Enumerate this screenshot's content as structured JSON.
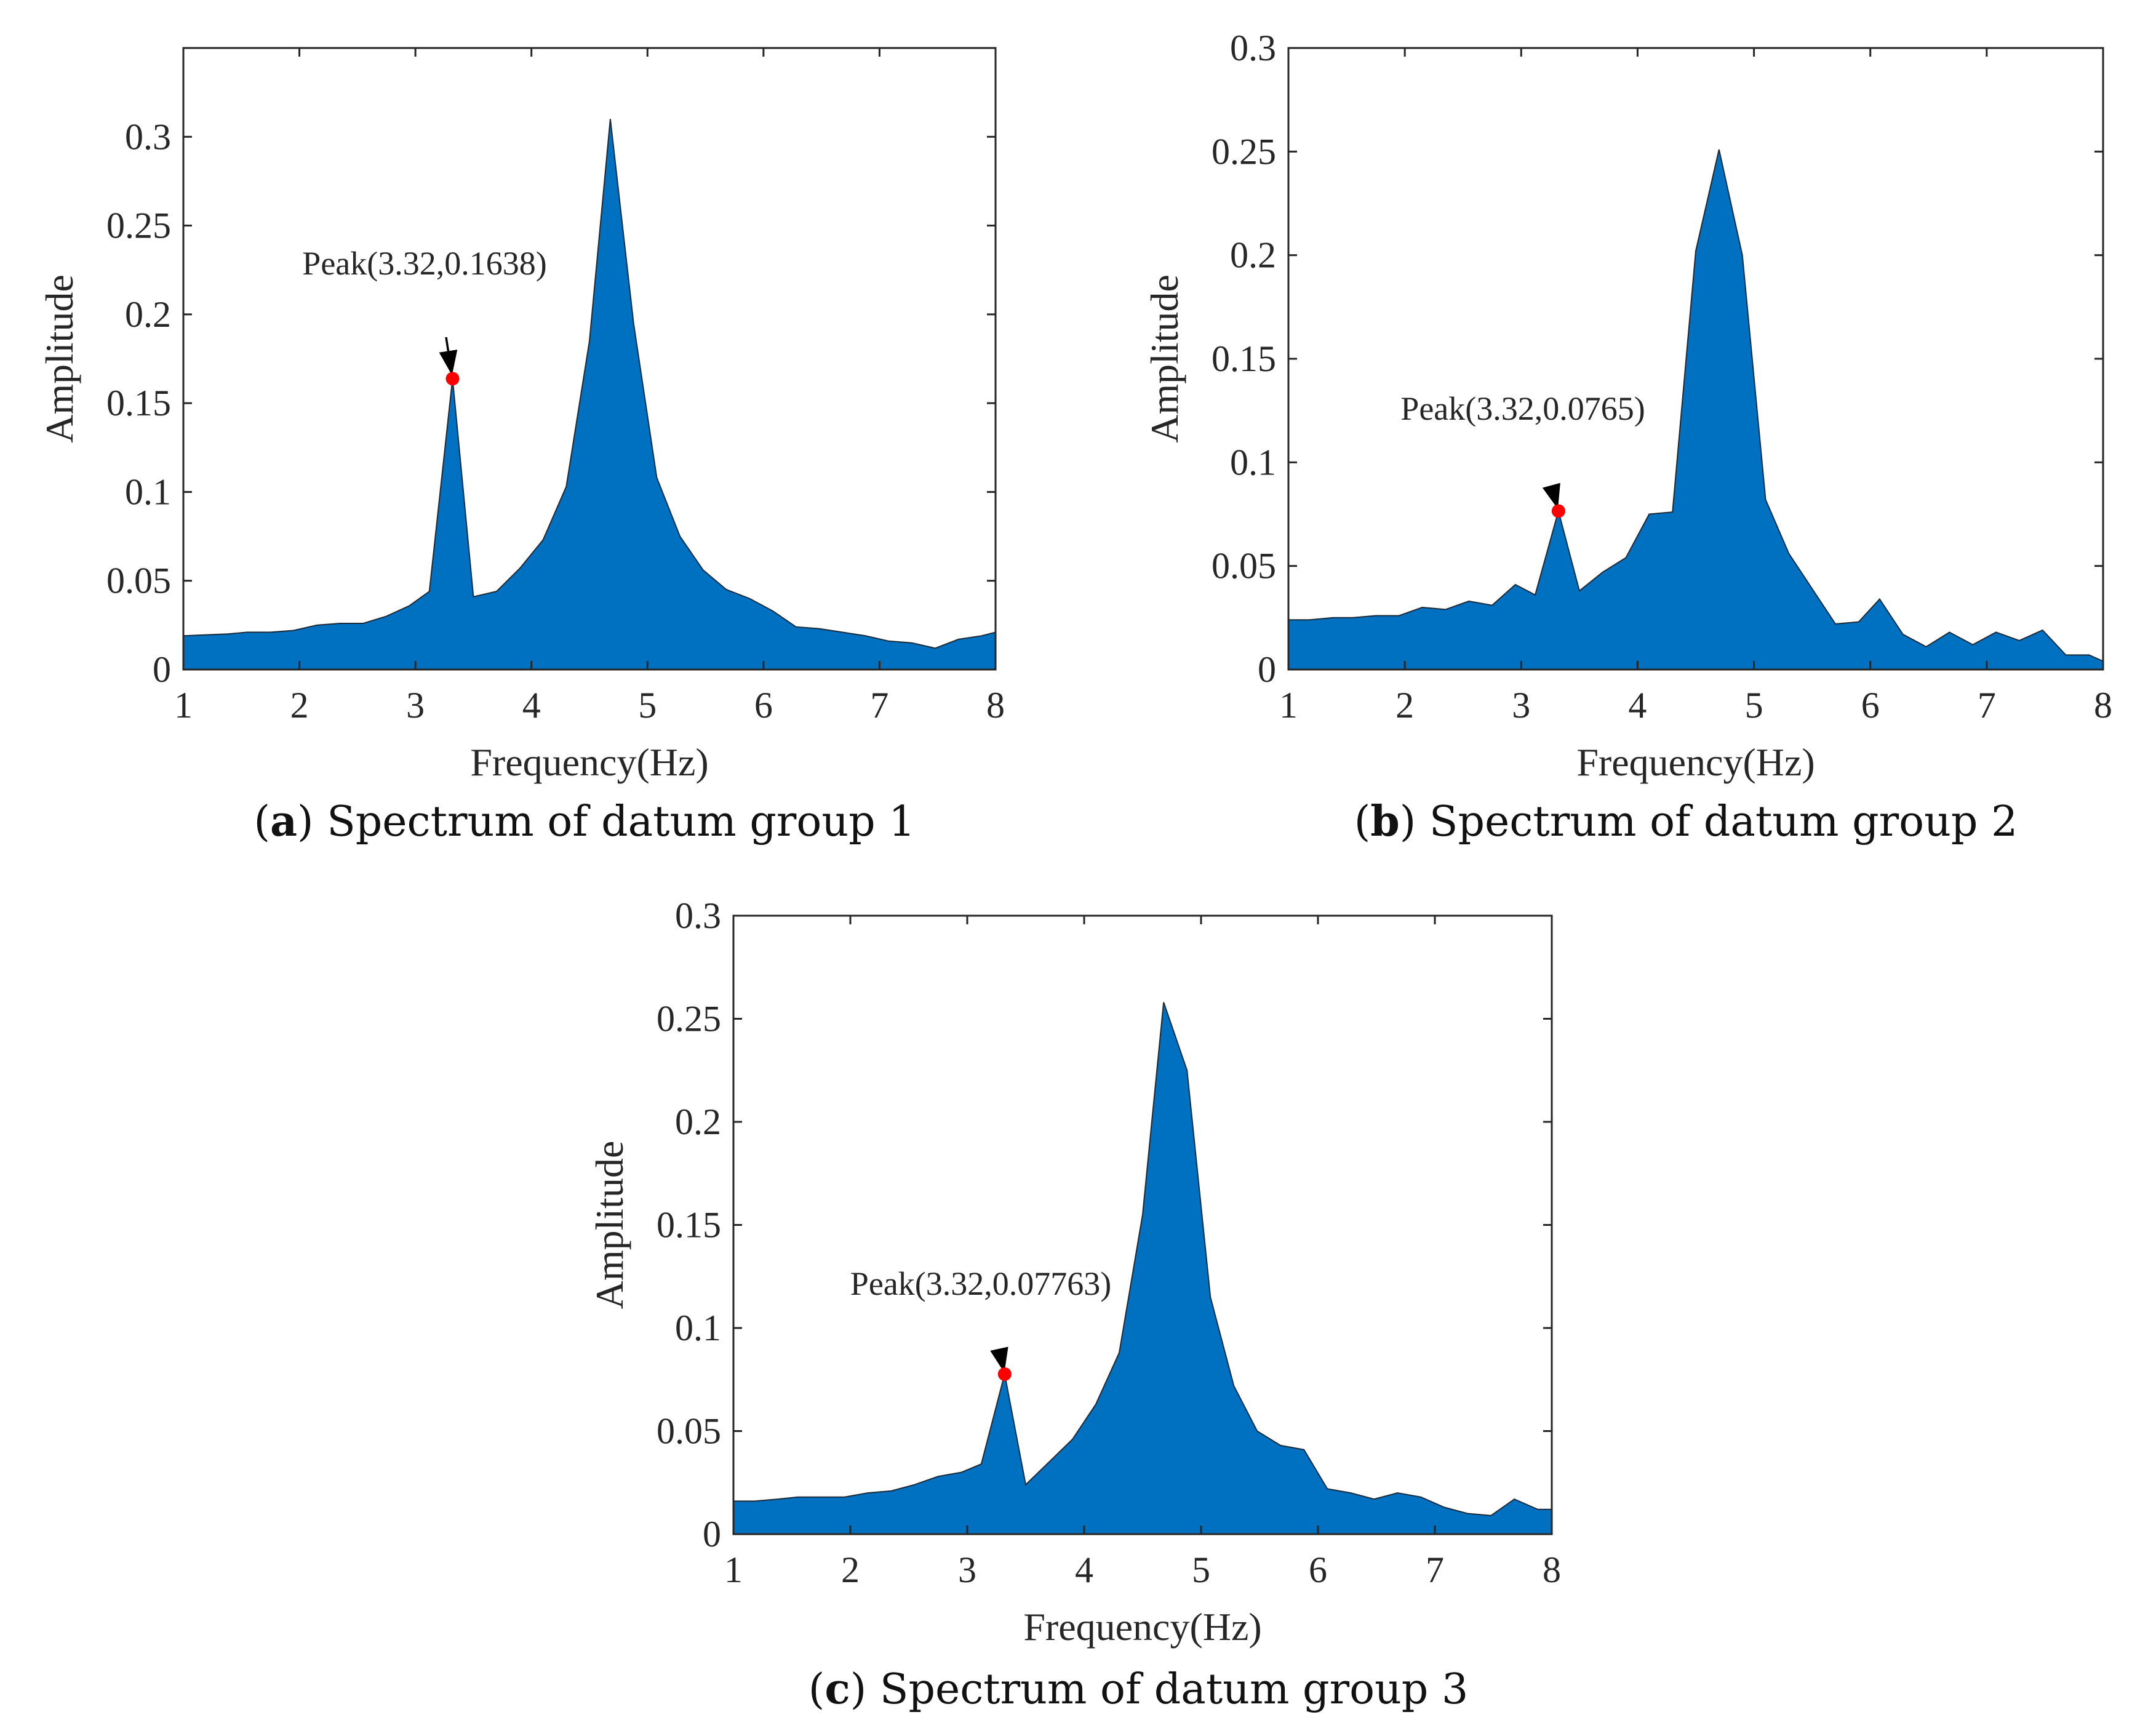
{
  "colors": {
    "fill": "#0070C0",
    "outline": "#1a2a3a",
    "axis": "#262626",
    "marker": "#ff0000",
    "text": "#262626"
  },
  "chart_data": [
    {
      "id": "a",
      "type": "area",
      "caption_letter": "a",
      "caption_text": " Spectrum of datum group 1",
      "xlabel": "Frequency(Hz)",
      "ylabel": "Amplitude",
      "xlim": [
        1,
        8
      ],
      "ylim": [
        0,
        0.35
      ],
      "xticks": [
        1,
        2,
        3,
        4,
        5,
        6,
        7,
        8
      ],
      "yticks": [
        0,
        0.05,
        0.1,
        0.15,
        0.2,
        0.25,
        0.3
      ],
      "ytick_labels": [
        "0",
        "0.05",
        "0.1",
        "0.15",
        "0.2",
        "0.25",
        "0.3"
      ],
      "x": [
        1.0,
        1.18,
        1.38,
        1.55,
        1.75,
        1.95,
        2.15,
        2.35,
        2.55,
        2.75,
        2.95,
        3.12,
        3.32,
        3.5,
        3.7,
        3.9,
        4.1,
        4.3,
        4.5,
        4.68,
        4.88,
        5.08,
        5.28,
        5.48,
        5.68,
        5.88,
        6.08,
        6.28,
        6.48,
        6.68,
        6.88,
        7.08,
        7.28,
        7.48,
        7.68,
        7.88,
        8.0
      ],
      "y": [
        0.019,
        0.0195,
        0.02,
        0.021,
        0.021,
        0.022,
        0.025,
        0.026,
        0.026,
        0.03,
        0.036,
        0.044,
        0.1638,
        0.041,
        0.044,
        0.057,
        0.073,
        0.103,
        0.185,
        0.31,
        0.195,
        0.108,
        0.075,
        0.056,
        0.045,
        0.04,
        0.033,
        0.024,
        0.023,
        0.021,
        0.019,
        0.016,
        0.015,
        0.012,
        0.017,
        0.019,
        0.021
      ],
      "peak": {
        "x": 3.32,
        "y": 0.1638,
        "label": "Peak(3.32,0.1638)"
      }
    },
    {
      "id": "b",
      "type": "area",
      "caption_letter": "b",
      "caption_text": " Spectrum of datum group 2",
      "xlabel": "Frequency(Hz)",
      "ylabel": "Amplitude",
      "xlim": [
        1,
        8
      ],
      "ylim": [
        0,
        0.3
      ],
      "xticks": [
        1,
        2,
        3,
        4,
        5,
        6,
        7,
        8
      ],
      "yticks": [
        0,
        0.05,
        0.1,
        0.15,
        0.2,
        0.25,
        0.3
      ],
      "ytick_labels": [
        "0",
        "0.05",
        "0.1",
        "0.15",
        "0.2",
        "0.25",
        "0.3"
      ],
      "x": [
        1.0,
        1.18,
        1.38,
        1.55,
        1.75,
        1.95,
        2.15,
        2.35,
        2.55,
        2.75,
        2.95,
        3.12,
        3.32,
        3.5,
        3.7,
        3.9,
        4.1,
        4.3,
        4.5,
        4.7,
        4.9,
        5.1,
        5.3,
        5.5,
        5.7,
        5.9,
        6.08,
        6.28,
        6.48,
        6.68,
        6.88,
        7.08,
        7.28,
        7.48,
        7.68,
        7.88,
        8.0
      ],
      "y": [
        0.024,
        0.024,
        0.025,
        0.025,
        0.026,
        0.026,
        0.03,
        0.029,
        0.033,
        0.031,
        0.041,
        0.036,
        0.0765,
        0.038,
        0.047,
        0.054,
        0.075,
        0.076,
        0.202,
        0.251,
        0.2,
        0.082,
        0.056,
        0.039,
        0.022,
        0.023,
        0.034,
        0.017,
        0.011,
        0.018,
        0.012,
        0.018,
        0.014,
        0.019,
        0.007,
        0.007,
        0.004
      ],
      "peak": {
        "x": 3.32,
        "y": 0.0765,
        "label": "Peak(3.32,0.0765)"
      }
    },
    {
      "id": "c",
      "type": "area",
      "caption_letter": "c",
      "caption_text": " Spectrum of datum group 3",
      "xlabel": "Frequency(Hz)",
      "ylabel": "Amplitude",
      "xlim": [
        1,
        8
      ],
      "ylim": [
        0,
        0.3
      ],
      "xticks": [
        1,
        2,
        3,
        4,
        5,
        6,
        7,
        8
      ],
      "yticks": [
        0,
        0.05,
        0.1,
        0.15,
        0.2,
        0.25,
        0.3
      ],
      "ytick_labels": [
        "0",
        "0.05",
        "0.1",
        "0.15",
        "0.2",
        "0.25",
        "0.3"
      ],
      "x": [
        1.0,
        1.18,
        1.38,
        1.55,
        1.75,
        1.95,
        2.15,
        2.35,
        2.55,
        2.75,
        2.95,
        3.12,
        3.32,
        3.5,
        3.7,
        3.9,
        4.1,
        4.3,
        4.5,
        4.68,
        4.88,
        5.08,
        5.28,
        5.48,
        5.68,
        5.88,
        6.08,
        6.28,
        6.48,
        6.68,
        6.88,
        7.08,
        7.28,
        7.48,
        7.68,
        7.88,
        8.0
      ],
      "y": [
        0.016,
        0.016,
        0.017,
        0.018,
        0.018,
        0.018,
        0.02,
        0.021,
        0.024,
        0.028,
        0.03,
        0.034,
        0.07763,
        0.024,
        0.035,
        0.046,
        0.063,
        0.088,
        0.155,
        0.258,
        0.225,
        0.115,
        0.072,
        0.05,
        0.043,
        0.041,
        0.022,
        0.02,
        0.017,
        0.02,
        0.018,
        0.013,
        0.01,
        0.009,
        0.017,
        0.012,
        0.012
      ],
      "peak": {
        "x": 3.32,
        "y": 0.07763,
        "label": "Peak(3.32,0.07763)"
      }
    }
  ]
}
